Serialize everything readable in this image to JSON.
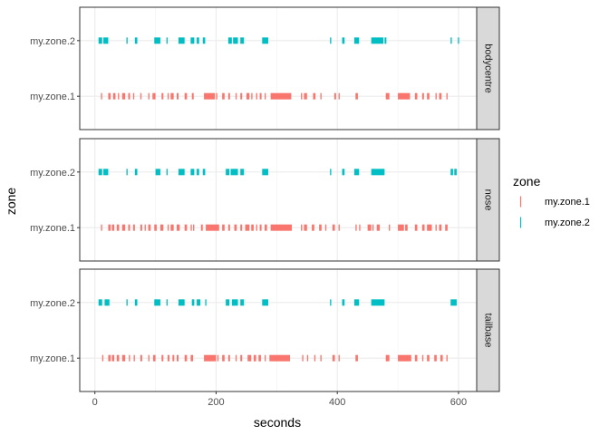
{
  "chart_data": {
    "type": "strip",
    "xlabel": "seconds",
    "ylabel": "zone",
    "x_ticks": [
      0,
      200,
      400,
      600
    ],
    "xlim": [
      -25,
      630
    ],
    "categories": [
      "my.zone.1",
      "my.zone.2"
    ],
    "legend": {
      "title": "zone",
      "position": "right",
      "entries": [
        {
          "label": "my.zone.1",
          "color": "#F8766D"
        },
        {
          "label": "my.zone.2",
          "color": "#00BFC4"
        }
      ]
    },
    "panels": [
      {
        "facet": "bodycentre",
        "series": [
          {
            "name": "my.zone.1",
            "color": "#F8766D",
            "intervals": [
              [
                10,
                12
              ],
              [
                22,
                26
              ],
              [
                30,
                34
              ],
              [
                38,
                40
              ],
              [
                45,
                50
              ],
              [
                55,
                58
              ],
              [
                63,
                65
              ],
              [
                75,
                77
              ],
              [
                88,
                90
              ],
              [
                95,
                100
              ],
              [
                110,
                113
              ],
              [
                120,
                122
              ],
              [
                125,
                130
              ],
              [
                135,
                138
              ],
              [
                148,
                152
              ],
              [
                160,
                163
              ],
              [
                180,
                198
              ],
              [
                200,
                202
              ],
              [
                210,
                214
              ],
              [
                220,
                223
              ],
              [
                232,
                234
              ],
              [
                240,
                243
              ],
              [
                250,
                255
              ],
              [
                258,
                260
              ],
              [
                266,
                268
              ],
              [
                272,
                275
              ],
              [
                280,
                282
              ],
              [
                290,
                324
              ],
              [
                340,
                342
              ],
              [
                345,
                350
              ],
              [
                360,
                364
              ],
              [
                372,
                374
              ],
              [
                395,
                398
              ],
              [
                402,
                404
              ],
              [
                430,
                434
              ],
              [
                480,
                486
              ],
              [
                500,
                520
              ],
              [
                528,
                532
              ],
              [
                540,
                543
              ],
              [
                548,
                552
              ],
              [
                562,
                564
              ],
              [
                568,
                572
              ],
              [
                580,
                582
              ]
            ]
          },
          {
            "name": "my.zone.2",
            "color": "#00BFC4",
            "intervals": [
              [
                6,
                12
              ],
              [
                14,
                22
              ],
              [
                52,
                54
              ],
              [
                66,
                70
              ],
              [
                98,
                108
              ],
              [
                118,
                120
              ],
              [
                138,
                148
              ],
              [
                158,
                164
              ],
              [
                168,
                172
              ],
              [
                178,
                182
              ],
              [
                220,
                226
              ],
              [
                228,
                236
              ],
              [
                240,
                246
              ],
              [
                276,
                286
              ],
              [
                388,
                390
              ],
              [
                408,
                412
              ],
              [
                428,
                436
              ],
              [
                456,
                476
              ],
              [
                478,
                481
              ],
              [
                587,
                589
              ],
              [
                599,
                601
              ]
            ]
          }
        ]
      },
      {
        "facet": "nose",
        "series": [
          {
            "name": "my.zone.1",
            "color": "#F8766D",
            "intervals": [
              [
                10,
                12
              ],
              [
                22,
                26
              ],
              [
                28,
                32
              ],
              [
                36,
                40
              ],
              [
                45,
                50
              ],
              [
                55,
                58
              ],
              [
                63,
                66
              ],
              [
                75,
                78
              ],
              [
                82,
                84
              ],
              [
                88,
                92
              ],
              [
                98,
                102
              ],
              [
                108,
                113
              ],
              [
                120,
                122
              ],
              [
                125,
                130
              ],
              [
                135,
                140
              ],
              [
                148,
                152
              ],
              [
                158,
                160
              ],
              [
                162,
                164
              ],
              [
                175,
                178
              ],
              [
                183,
                205
              ],
              [
                210,
                214
              ],
              [
                220,
                223
              ],
              [
                230,
                234
              ],
              [
                240,
                243
              ],
              [
                248,
                255
              ],
              [
                258,
                262
              ],
              [
                266,
                268
              ],
              [
                272,
                275
              ],
              [
                280,
                284
              ],
              [
                290,
                325
              ],
              [
                340,
                342
              ],
              [
                345,
                350
              ],
              [
                358,
                362
              ],
              [
                370,
                374
              ],
              [
                380,
                382
              ],
              [
                392,
                396
              ],
              [
                402,
                404
              ],
              [
                430,
                432
              ],
              [
                436,
                438
              ],
              [
                450,
                456
              ],
              [
                458,
                460
              ],
              [
                465,
                470
              ],
              [
                485,
                487
              ],
              [
                500,
                510
              ],
              [
                512,
                516
              ],
              [
                528,
                532
              ],
              [
                540,
                544
              ],
              [
                548,
                556
              ],
              [
                562,
                564
              ],
              [
                568,
                572
              ],
              [
                578,
                582
              ]
            ]
          },
          {
            "name": "my.zone.2",
            "color": "#00BFC4",
            "intervals": [
              [
                6,
                12
              ],
              [
                14,
                22
              ],
              [
                52,
                54
              ],
              [
                66,
                70
              ],
              [
                100,
                108
              ],
              [
                118,
                120
              ],
              [
                138,
                148
              ],
              [
                158,
                164
              ],
              [
                168,
                172
              ],
              [
                178,
                182
              ],
              [
                216,
                222
              ],
              [
                224,
                236
              ],
              [
                240,
                246
              ],
              [
                276,
                286
              ],
              [
                388,
                390
              ],
              [
                408,
                412
              ],
              [
                428,
                436
              ],
              [
                456,
                478
              ],
              [
                587,
                591
              ],
              [
                593,
                597
              ]
            ]
          }
        ]
      },
      {
        "facet": "tailbase",
        "series": [
          {
            "name": "my.zone.1",
            "color": "#F8766D",
            "intervals": [
              [
                12,
                14
              ],
              [
                22,
                26
              ],
              [
                28,
                32
              ],
              [
                36,
                40
              ],
              [
                45,
                50
              ],
              [
                56,
                58
              ],
              [
                64,
                66
              ],
              [
                75,
                78
              ],
              [
                88,
                90
              ],
              [
                96,
                100
              ],
              [
                110,
                113
              ],
              [
                120,
                123
              ],
              [
                128,
                131
              ],
              [
                135,
                138
              ],
              [
                148,
                152
              ],
              [
                158,
                162
              ],
              [
                180,
                200
              ],
              [
                202,
                204
              ],
              [
                210,
                214
              ],
              [
                220,
                223
              ],
              [
                232,
                234
              ],
              [
                240,
                243
              ],
              [
                252,
                258
              ],
              [
                262,
                266
              ],
              [
                270,
                274
              ],
              [
                280,
                282
              ],
              [
                288,
                322
              ],
              [
                342,
                344
              ],
              [
                350,
                352
              ],
              [
                362,
                364
              ],
              [
                372,
                374
              ],
              [
                392,
                396
              ],
              [
                402,
                404
              ],
              [
                430,
                434
              ],
              [
                480,
                486
              ],
              [
                500,
                522
              ],
              [
                528,
                532
              ],
              [
                540,
                542
              ],
              [
                548,
                552
              ],
              [
                560,
                564
              ],
              [
                570,
                574
              ],
              [
                580,
                582
              ]
            ]
          },
          {
            "name": "my.zone.2",
            "color": "#00BFC4",
            "intervals": [
              [
                6,
                12
              ],
              [
                16,
                24
              ],
              [
                52,
                54
              ],
              [
                66,
                70
              ],
              [
                98,
                108
              ],
              [
                118,
                120
              ],
              [
                138,
                148
              ],
              [
                160,
                164
              ],
              [
                168,
                174
              ],
              [
                182,
                184
              ],
              [
                216,
                222
              ],
              [
                226,
                236
              ],
              [
                240,
                246
              ],
              [
                276,
                286
              ],
              [
                388,
                390
              ],
              [
                408,
                412
              ],
              [
                428,
                436
              ],
              [
                456,
                478
              ],
              [
                587,
                597
              ]
            ]
          }
        ]
      }
    ]
  }
}
